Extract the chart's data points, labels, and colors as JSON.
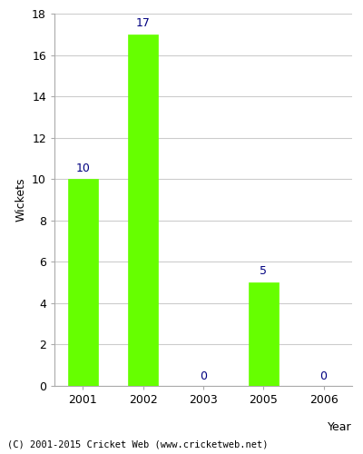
{
  "years": [
    "2001",
    "2002",
    "2003",
    "2005",
    "2006"
  ],
  "values": [
    10,
    17,
    0,
    5,
    0
  ],
  "bar_color": "#66ff00",
  "bar_edge_color": "#66ff00",
  "label_color": "#000080",
  "ylabel": "Wickets",
  "xlabel": "Year",
  "ylim": [
    0,
    18
  ],
  "yticks": [
    0,
    2,
    4,
    6,
    8,
    10,
    12,
    14,
    16,
    18
  ],
  "footer": "(C) 2001-2015 Cricket Web (www.cricketweb.net)",
  "background_color": "#ffffff",
  "grid_color": "#cccccc",
  "bar_width": 0.5
}
